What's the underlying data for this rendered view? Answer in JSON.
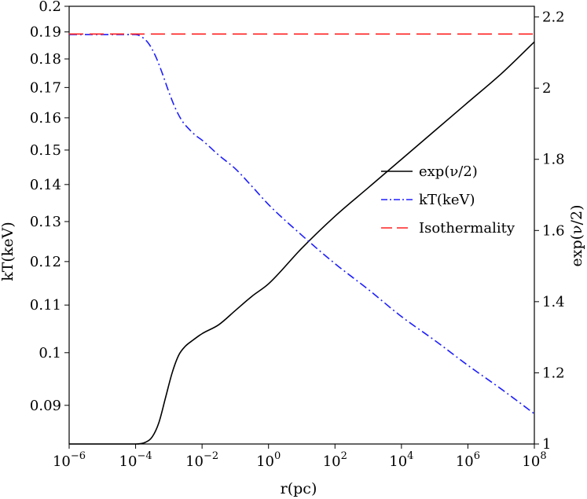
{
  "chart_data": {
    "type": "line",
    "xlabel": "r(pc)",
    "ylabel_left": "kT(keV)",
    "ylabel_right": "exp(ν/2)",
    "x_scale": "log",
    "x_range_log10": [
      -6,
      8
    ],
    "x_ticks": [
      {
        "base": "10",
        "exp": "−6",
        "log10": -6
      },
      {
        "base": "10",
        "exp": "−4",
        "log10": -4
      },
      {
        "base": "10",
        "exp": "−2",
        "log10": -2
      },
      {
        "base": "10",
        "exp": "0",
        "log10": 0
      },
      {
        "base": "10",
        "exp": "2",
        "log10": 2
      },
      {
        "base": "10",
        "exp": "4",
        "log10": 4
      },
      {
        "base": "10",
        "exp": "6",
        "log10": 6
      },
      {
        "base": "10",
        "exp": "8",
        "log10": 8
      }
    ],
    "y_left_scale": "log",
    "y_left_range": [
      0.0833,
      0.2
    ],
    "y_left_ticks": [
      "0.09",
      "0.1",
      "0.11",
      "0.12",
      "0.13",
      "0.14",
      "0.15",
      "0.16",
      "0.17",
      "0.18",
      "0.19",
      "0.2"
    ],
    "y_right_range": [
      1.0,
      2.23
    ],
    "y_right_ticks": [
      "1",
      "1.2",
      "1.4",
      "1.6",
      "1.8",
      "2",
      "2.2"
    ],
    "legend_position": "right-middle",
    "series": [
      {
        "name": "exp(ν/2)",
        "axis": "right",
        "color": "#000000",
        "dash": "solid",
        "log10_r": [
          -6,
          -4,
          -3.7,
          -3.5,
          -3.3,
          -3.1,
          -2.9,
          -2.7,
          -2.5,
          -2.3,
          -2,
          -1.5,
          -1,
          -0.5,
          0,
          1,
          2,
          3,
          4,
          5,
          6,
          7,
          8
        ],
        "values": [
          1.0,
          1.0,
          1.005,
          1.02,
          1.06,
          1.13,
          1.2,
          1.25,
          1.275,
          1.29,
          1.31,
          1.335,
          1.375,
          1.415,
          1.45,
          1.55,
          1.64,
          1.72,
          1.8,
          1.88,
          1.96,
          2.04,
          2.13
        ]
      },
      {
        "name": "kT(keV)",
        "axis": "left",
        "color": "#1f1fff",
        "dash": "dashdot",
        "log10_r": [
          -6,
          -4,
          -3.8,
          -3.6,
          -3.4,
          -3.2,
          -3.0,
          -2.8,
          -2.6,
          -2.4,
          -2.2,
          -2,
          -1.5,
          -1,
          -0.5,
          0,
          1,
          2,
          3,
          4,
          5,
          6,
          7,
          8
        ],
        "values": [
          0.189,
          0.189,
          0.188,
          0.1855,
          0.181,
          0.175,
          0.1685,
          0.163,
          0.159,
          0.1565,
          0.1545,
          0.153,
          0.1485,
          0.1445,
          0.1395,
          0.1345,
          0.1265,
          0.1195,
          0.1135,
          0.1075,
          0.1025,
          0.0975,
          0.093,
          0.0885
        ]
      },
      {
        "name": "Isothermality",
        "axis": "left",
        "color": "#ff2020",
        "dash": "dashed",
        "log10_r": [
          -6,
          8
        ],
        "values": [
          0.1892,
          0.1892
        ]
      }
    ]
  }
}
